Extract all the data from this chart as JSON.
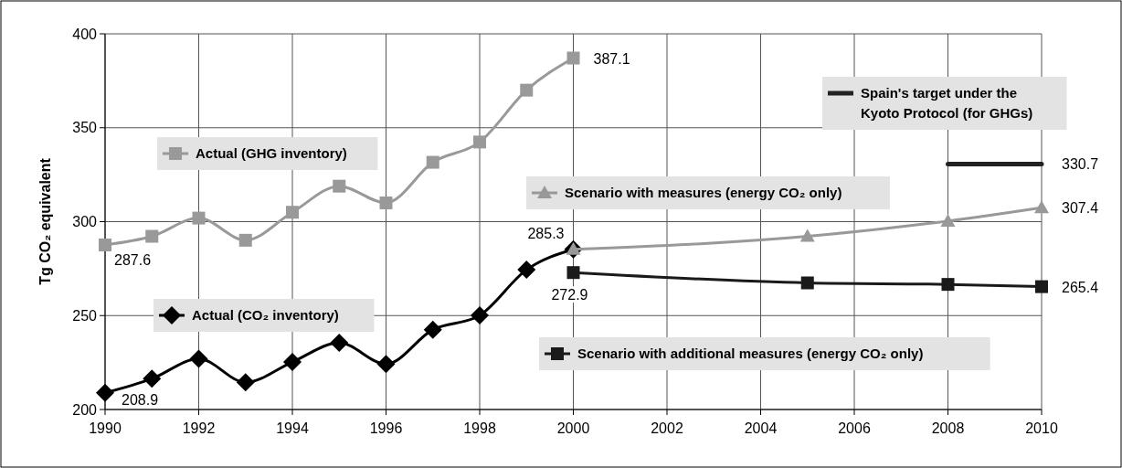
{
  "chart_data": {
    "type": "line",
    "ylabel": "Tg CO₂ equivalent",
    "xlim": [
      1990,
      2010
    ],
    "xticks": [
      1990,
      1992,
      1994,
      1996,
      1998,
      2000,
      2002,
      2004,
      2006,
      2008,
      2010
    ],
    "ylim": [
      200,
      400
    ],
    "yticks": [
      200,
      250,
      300,
      350,
      400
    ],
    "grid": true,
    "legend": "bottom right",
    "series": [
      {
        "name": "Actual (GHG inventory)",
        "color": "#999999",
        "marker": "square",
        "x": [
          1990,
          1991,
          1992,
          1993,
          1994,
          1995,
          1996,
          1997,
          1998,
          1999,
          2000
        ],
        "values": [
          287.6,
          292.2,
          301.9,
          290.1,
          305.0,
          318.9,
          310.0,
          331.6,
          342.4,
          370.0,
          387.1
        ],
        "value_labels": [
          "287.6",
          null,
          null,
          null,
          null,
          null,
          null,
          null,
          null,
          null,
          "387.1"
        ]
      },
      {
        "name": "Actual (CO₂ inventory)",
        "color": "#000000",
        "marker": "diamond",
        "x": [
          1990,
          1991,
          1992,
          1993,
          1994,
          1995,
          1996,
          1997,
          1998,
          1999,
          2000
        ],
        "values": [
          208.9,
          216.4,
          227.0,
          214.5,
          225.3,
          235.5,
          224.2,
          242.5,
          250.1,
          274.4,
          285.3
        ],
        "value_labels": [
          "208.9",
          null,
          null,
          null,
          null,
          null,
          null,
          null,
          null,
          null,
          null
        ]
      },
      {
        "name": "Scenario with measures (energy CO₂ only)",
        "color": "#999999",
        "marker": "triangle",
        "x": [
          2000,
          2005,
          2008,
          2010
        ],
        "values": [
          285.3,
          292.2,
          300.3,
          307.4
        ],
        "value_labels": [
          "285.3",
          null,
          null,
          "307.4"
        ]
      },
      {
        "name": "Scenario with additional measures (energy CO₂ only)",
        "color": "#1a1a1a",
        "marker": "square",
        "x": [
          2000,
          2005,
          2008,
          2010
        ],
        "values": [
          272.9,
          267.4,
          266.6,
          265.4
        ],
        "value_labels": [
          "272.9",
          null,
          null,
          "265.4"
        ]
      },
      {
        "name": "Spain's target under the Kyoto Protocol (for GHGs)",
        "color": "#222222",
        "marker": "none",
        "x": [
          2008,
          2010
        ],
        "values": [
          330.7,
          330.7
        ],
        "value_labels": [
          null,
          "330.7"
        ]
      }
    ]
  }
}
